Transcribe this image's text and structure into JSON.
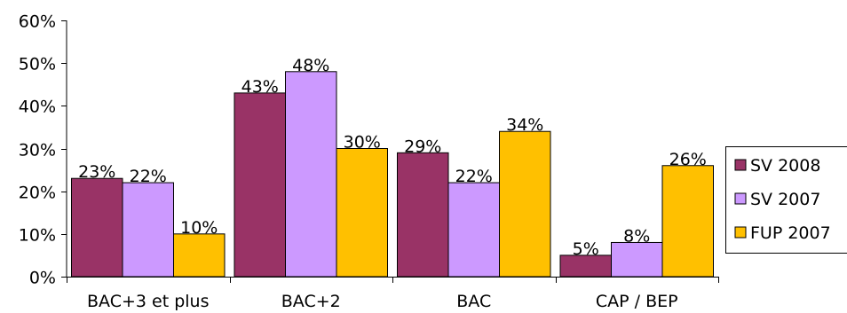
{
  "chart_data": {
    "type": "bar",
    "title": "",
    "xlabel": "",
    "ylabel": "",
    "categories": [
      "BAC+3 et plus",
      "BAC+2",
      "BAC",
      "CAP / BEP"
    ],
    "series": [
      {
        "name": "SV 2008",
        "color": "#993366",
        "values": [
          23,
          43,
          29,
          5
        ]
      },
      {
        "name": "SV 2007",
        "color": "#CC99FF",
        "values": [
          22,
          48,
          22,
          8
        ]
      },
      {
        "name": "FUP 2007",
        "color": "#FFC000",
        "values": [
          10,
          30,
          34,
          26
        ]
      }
    ],
    "ylim": [
      0,
      60
    ],
    "yticks": [
      0,
      10,
      20,
      30,
      40,
      50,
      60
    ],
    "tick_format": "{v}%",
    "data_label_format": "{v}%",
    "grid": false,
    "legend_position": "right"
  }
}
